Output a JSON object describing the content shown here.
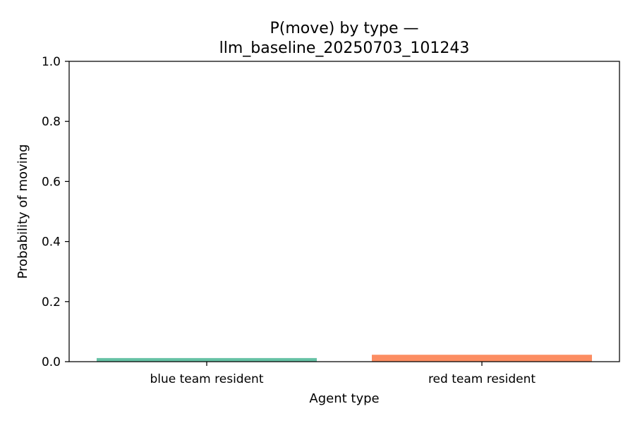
{
  "chart_data": {
    "type": "bar",
    "title_line1": "P(move) by type —",
    "title_line2": "llm_baseline_20250703_101243",
    "xlabel": "Agent type",
    "ylabel": "Probability of moving",
    "categories": [
      "blue team resident",
      "red team resident"
    ],
    "values": [
      0.012,
      0.023
    ],
    "colors": [
      "#66c2a5",
      "#fc8d62"
    ],
    "ylim": [
      0,
      1.0
    ],
    "yticks": [
      0.0,
      0.2,
      0.4,
      0.6,
      0.8,
      1.0
    ],
    "ytick_labels": [
      "0.0",
      "0.2",
      "0.4",
      "0.6",
      "0.8",
      "1.0"
    ],
    "grid": false,
    "legend": "none"
  }
}
